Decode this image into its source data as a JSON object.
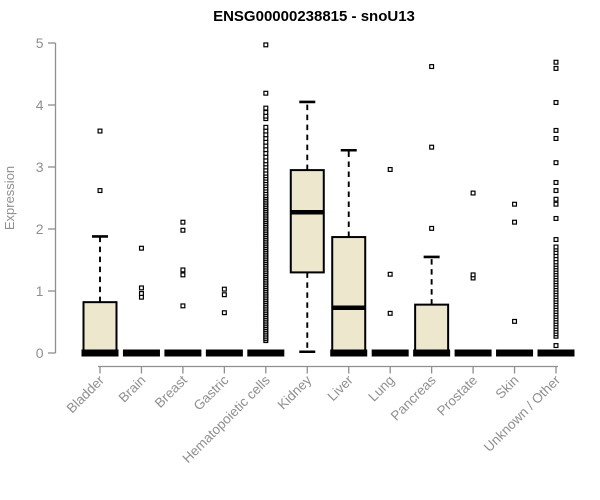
{
  "colors": {
    "box_fill": "#ece7cd",
    "box_stroke": "#000000",
    "axis_gray": "#8f8f8f",
    "background": "#ffffff"
  },
  "chart_data": {
    "type": "boxplot",
    "title": "ENSG00000238815 - snoU13",
    "xlabel": "",
    "ylabel": "Expression",
    "ylim": [
      0,
      5
    ],
    "yticks": [
      0,
      1,
      2,
      3,
      4,
      5
    ],
    "grid": false,
    "legend": false,
    "categories": [
      "Bladder",
      "Brain",
      "Breast",
      "Gastric",
      "Hematopoietic cells",
      "Kidney",
      "Liver",
      "Lung",
      "Pancreas",
      "Prostate",
      "Skin",
      "Unknown / Other"
    ],
    "series": [
      {
        "category": "Bladder",
        "flat": false,
        "zero_bar": true,
        "q1": 0,
        "q3": 0.82,
        "median": 0.02,
        "whisker_low": 0,
        "whisker_high": 1.88,
        "outliers": [
          2.62,
          3.58
        ]
      },
      {
        "category": "Brain",
        "flat": true,
        "zero_bar": true,
        "q1": 0,
        "q3": 0,
        "median": 0,
        "whisker_low": 0,
        "whisker_high": 0,
        "outliers": [
          0.9,
          0.96,
          1.05,
          1.69
        ]
      },
      {
        "category": "Breast",
        "flat": true,
        "zero_bar": true,
        "q1": 0,
        "q3": 0,
        "median": 0,
        "whisker_low": 0,
        "whisker_high": 0,
        "outliers": [
          0.76,
          1.26,
          1.34,
          1.98,
          2.11
        ]
      },
      {
        "category": "Gastric",
        "flat": true,
        "zero_bar": true,
        "q1": 0,
        "q3": 0,
        "median": 0,
        "whisker_low": 0,
        "whisker_high": 0,
        "outliers": [
          0.65,
          0.94,
          1.03
        ]
      },
      {
        "category": "Hematopoietic cells",
        "flat": true,
        "zero_bar": true,
        "q1": 0,
        "q3": 0,
        "median": 0,
        "whisker_low": 0,
        "whisker_high": 0,
        "outliers": [
          0.2,
          0.23,
          0.26,
          0.29,
          0.32,
          0.35,
          0.38,
          0.41,
          0.44,
          0.47,
          0.5,
          0.53,
          0.56,
          0.59,
          0.62,
          0.65,
          0.68,
          0.71,
          0.74,
          0.77,
          0.8,
          0.83,
          0.86,
          0.89,
          0.92,
          0.95,
          0.98,
          1.01,
          1.04,
          1.07,
          1.1,
          1.13,
          1.16,
          1.19,
          1.22,
          1.25,
          1.28,
          1.31,
          1.34,
          1.37,
          1.4,
          1.43,
          1.46,
          1.49,
          1.52,
          1.55,
          1.58,
          1.61,
          1.64,
          1.67,
          1.7,
          1.73,
          1.76,
          1.79,
          1.82,
          1.85,
          1.88,
          1.91,
          1.94,
          1.97,
          2.0,
          2.03,
          2.06,
          2.09,
          2.12,
          2.15,
          2.18,
          2.21,
          2.24,
          2.27,
          2.3,
          2.33,
          2.36,
          2.39,
          2.42,
          2.45,
          2.48,
          2.51,
          2.54,
          2.58,
          2.62,
          2.66,
          2.7,
          2.74,
          2.78,
          2.82,
          2.86,
          2.9,
          2.95,
          3.0,
          3.05,
          3.1,
          3.16,
          3.22,
          3.28,
          3.34,
          3.4,
          3.46,
          3.52,
          3.58,
          3.64,
          3.78,
          3.82,
          3.88,
          3.95,
          4.19,
          4.97
        ]
      },
      {
        "category": "Kidney",
        "flat": false,
        "zero_bar": false,
        "q1": 1.3,
        "q3": 2.95,
        "median": 2.27,
        "whisker_low": 0.02,
        "whisker_high": 4.05,
        "outliers": []
      },
      {
        "category": "Liver",
        "flat": false,
        "zero_bar": true,
        "q1": 0,
        "q3": 1.87,
        "median": 0.73,
        "whisker_low": 0,
        "whisker_high": 3.27,
        "outliers": []
      },
      {
        "category": "Lung",
        "flat": true,
        "zero_bar": true,
        "q1": 0,
        "q3": 0,
        "median": 0,
        "whisker_low": 0,
        "whisker_high": 0,
        "outliers": [
          0.64,
          1.27,
          2.96
        ]
      },
      {
        "category": "Pancreas",
        "flat": false,
        "zero_bar": true,
        "q1": 0,
        "q3": 0.78,
        "median": 0.02,
        "whisker_low": 0,
        "whisker_high": 1.55,
        "outliers": [
          2.01,
          3.32,
          4.62
        ]
      },
      {
        "category": "Prostate",
        "flat": true,
        "zero_bar": true,
        "q1": 0,
        "q3": 0,
        "median": 0,
        "whisker_low": 0,
        "whisker_high": 0,
        "outliers": [
          1.21,
          1.26,
          2.58
        ]
      },
      {
        "category": "Skin",
        "flat": true,
        "zero_bar": true,
        "q1": 0,
        "q3": 0,
        "median": 0,
        "whisker_low": 0,
        "whisker_high": 0,
        "outliers": [
          0.51,
          2.11,
          2.4
        ]
      },
      {
        "category": "Unknown / Other",
        "flat": true,
        "zero_bar": true,
        "q1": 0,
        "q3": 0,
        "median": 0,
        "whisker_low": 0,
        "whisker_high": 0,
        "outliers": [
          0.12,
          0.27,
          0.31,
          0.35,
          0.39,
          0.43,
          0.47,
          0.51,
          0.55,
          0.59,
          0.63,
          0.67,
          0.71,
          0.75,
          0.79,
          0.83,
          0.87,
          0.91,
          0.95,
          0.99,
          1.03,
          1.07,
          1.11,
          1.15,
          1.19,
          1.23,
          1.27,
          1.31,
          1.35,
          1.39,
          1.43,
          1.47,
          1.52,
          1.57,
          1.62,
          1.67,
          1.71,
          1.83,
          2.17,
          2.4,
          2.48,
          2.62,
          2.75,
          3.07,
          3.46,
          3.59,
          4.04,
          4.59,
          4.69
        ]
      }
    ]
  }
}
